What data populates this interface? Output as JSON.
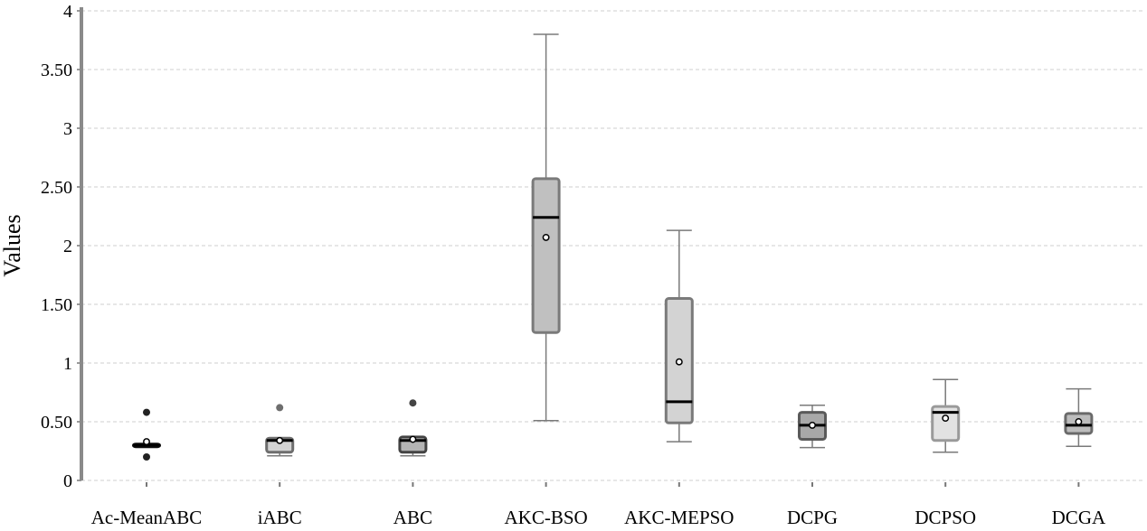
{
  "chart_data": {
    "type": "boxplot",
    "title": "",
    "xlabel": "",
    "ylabel": "Values",
    "ylim": [
      0,
      4
    ],
    "grid": true,
    "yticks": [
      {
        "value": 0,
        "label": "0"
      },
      {
        "value": 0.5,
        "label": "0.50"
      },
      {
        "value": 1,
        "label": "1"
      },
      {
        "value": 1.5,
        "label": "1.50"
      },
      {
        "value": 2,
        "label": "2"
      },
      {
        "value": 2.5,
        "label": "2.50"
      },
      {
        "value": 3,
        "label": "3"
      },
      {
        "value": 3.5,
        "label": "3.50"
      },
      {
        "value": 4,
        "label": "4"
      }
    ],
    "categories": [
      "Ac-MeanABC",
      "iABC",
      "ABC",
      "AKC-BSO",
      "AKC-MEPSO",
      "DCPG",
      "DCPSO",
      "DCGA"
    ],
    "series": [
      {
        "name": "Ac-MeanABC",
        "whisker_low": 0.29,
        "q1": 0.29,
        "median": 0.3,
        "q3": 0.31,
        "whisker_high": 0.31,
        "mean": 0.33,
        "outliers": [
          0.2,
          0.58
        ],
        "fill": "#d3d3d3",
        "stroke": "#111111"
      },
      {
        "name": "iABC",
        "whisker_low": 0.21,
        "q1": 0.24,
        "median": 0.34,
        "q3": 0.36,
        "whisker_high": 0.36,
        "mean": 0.34,
        "outliers": [
          0.62
        ],
        "fill": "#d3d3d3",
        "stroke": "#6e6e6e"
      },
      {
        "name": "ABC",
        "whisker_low": 0.21,
        "q1": 0.24,
        "median": 0.34,
        "q3": 0.37,
        "whisker_high": 0.37,
        "mean": 0.35,
        "outliers": [
          0.66
        ],
        "fill": "#b4b4b4",
        "stroke": "#444444"
      },
      {
        "name": "AKC-BSO",
        "whisker_low": 0.51,
        "q1": 1.26,
        "median": 2.24,
        "q3": 2.57,
        "whisker_high": 3.8,
        "mean": 2.07,
        "outliers": [],
        "fill": "#c0c0c0",
        "stroke": "#7a7a7a"
      },
      {
        "name": "AKC-MEPSO",
        "whisker_low": 0.33,
        "q1": 0.49,
        "median": 0.67,
        "q3": 1.55,
        "whisker_high": 2.13,
        "mean": 1.01,
        "outliers": [],
        "fill": "#d3d3d3",
        "stroke": "#7a7a7a"
      },
      {
        "name": "DCPG",
        "whisker_low": 0.28,
        "q1": 0.35,
        "median": 0.47,
        "q3": 0.58,
        "whisker_high": 0.64,
        "mean": 0.47,
        "outliers": [],
        "fill": "#a8a8a8",
        "stroke": "#5a5a5a"
      },
      {
        "name": "DCPSO",
        "whisker_low": 0.24,
        "q1": 0.34,
        "median": 0.58,
        "q3": 0.63,
        "whisker_high": 0.86,
        "mean": 0.53,
        "outliers": [],
        "fill": "#e2e2e2",
        "stroke": "#9a9a9a"
      },
      {
        "name": "DCGA",
        "whisker_low": 0.29,
        "q1": 0.4,
        "median": 0.47,
        "q3": 0.57,
        "whisker_high": 0.78,
        "mean": 0.5,
        "outliers": [],
        "fill": "#bdbdbd",
        "stroke": "#6a6a6a"
      }
    ]
  }
}
